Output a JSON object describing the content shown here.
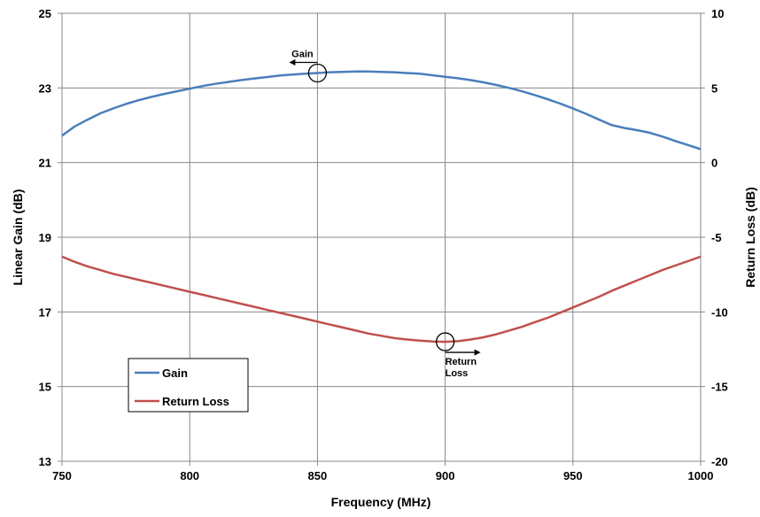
{
  "chart_data": {
    "type": "line",
    "title": "",
    "xlabel": "Frequency (MHz)",
    "ylabel_left": "Linear Gain (dB)",
    "ylabel_right": "Return Loss (dB)",
    "xlim": [
      750,
      1000
    ],
    "ylim_left": [
      13,
      25
    ],
    "ylim_right": [
      -20,
      10
    ],
    "x_ticks": [
      "750",
      "800",
      "850",
      "900",
      "950",
      "1000"
    ],
    "y_left_ticks": [
      "13",
      "15",
      "17",
      "19",
      "21",
      "23",
      "25"
    ],
    "y_right_ticks": [
      "-20",
      "-15",
      "-10",
      "-5",
      "0",
      "5",
      "10"
    ],
    "grid": true,
    "legend_position": "bottom-left",
    "series": [
      {
        "name": "Gain",
        "axis": "left",
        "color": "#4a7ebb",
        "x": [
          750,
          755,
          760,
          765,
          770,
          775,
          780,
          785,
          790,
          795,
          800,
          805,
          810,
          815,
          820,
          825,
          830,
          835,
          840,
          845,
          850,
          855,
          860,
          865,
          870,
          875,
          880,
          885,
          890,
          895,
          900,
          905,
          910,
          915,
          920,
          925,
          930,
          935,
          940,
          945,
          950,
          955,
          960,
          965,
          970,
          975,
          980,
          985,
          990,
          995,
          1000
        ],
        "values": [
          21.72,
          21.97,
          22.15,
          22.32,
          22.45,
          22.57,
          22.67,
          22.76,
          22.84,
          22.91,
          22.98,
          23.05,
          23.11,
          23.16,
          23.21,
          23.25,
          23.29,
          23.33,
          23.36,
          23.38,
          23.4,
          23.42,
          23.43,
          23.44,
          23.44,
          23.43,
          23.42,
          23.4,
          23.38,
          23.34,
          23.3,
          23.26,
          23.21,
          23.15,
          23.08,
          23.0,
          22.91,
          22.81,
          22.7,
          22.58,
          22.45,
          22.31,
          22.16,
          22.01,
          21.93,
          21.87,
          21.8,
          21.7,
          21.58,
          21.47,
          21.36
        ]
      },
      {
        "name": "Return Loss",
        "axis": "right",
        "color": "#c0504d",
        "x": [
          750,
          755,
          760,
          765,
          770,
          775,
          780,
          785,
          790,
          795,
          800,
          805,
          810,
          815,
          820,
          825,
          830,
          835,
          840,
          845,
          850,
          855,
          860,
          865,
          870,
          875,
          880,
          885,
          890,
          895,
          900,
          905,
          910,
          915,
          920,
          925,
          930,
          935,
          940,
          945,
          950,
          955,
          960,
          965,
          970,
          975,
          980,
          985,
          990,
          995,
          1000
        ],
        "values": [
          -6.3,
          -6.65,
          -6.95,
          -7.2,
          -7.45,
          -7.65,
          -7.85,
          -8.05,
          -8.25,
          -8.45,
          -8.65,
          -8.85,
          -9.05,
          -9.25,
          -9.45,
          -9.65,
          -9.85,
          -10.05,
          -10.25,
          -10.45,
          -10.65,
          -10.85,
          -11.05,
          -11.25,
          -11.45,
          -11.6,
          -11.75,
          -11.85,
          -11.92,
          -11.98,
          -12.0,
          -11.96,
          -11.85,
          -11.7,
          -11.5,
          -11.25,
          -11.0,
          -10.7,
          -10.4,
          -10.05,
          -9.7,
          -9.35,
          -9.0,
          -8.6,
          -8.25,
          -7.9,
          -7.55,
          -7.2,
          -6.9,
          -6.6,
          -6.3
        ]
      }
    ],
    "annotations": [
      {
        "text": "Gain",
        "x": 850,
        "y": 23.4,
        "axis": "left",
        "arrow": "left"
      },
      {
        "text": "Return",
        "text2": "Loss",
        "x": 900,
        "y": -12.0,
        "axis": "right",
        "arrow": "right"
      }
    ],
    "legend": [
      {
        "label": "Gain",
        "color": "#4a7ebb"
      },
      {
        "label": "Return Loss",
        "color": "#c0504d"
      }
    ]
  }
}
